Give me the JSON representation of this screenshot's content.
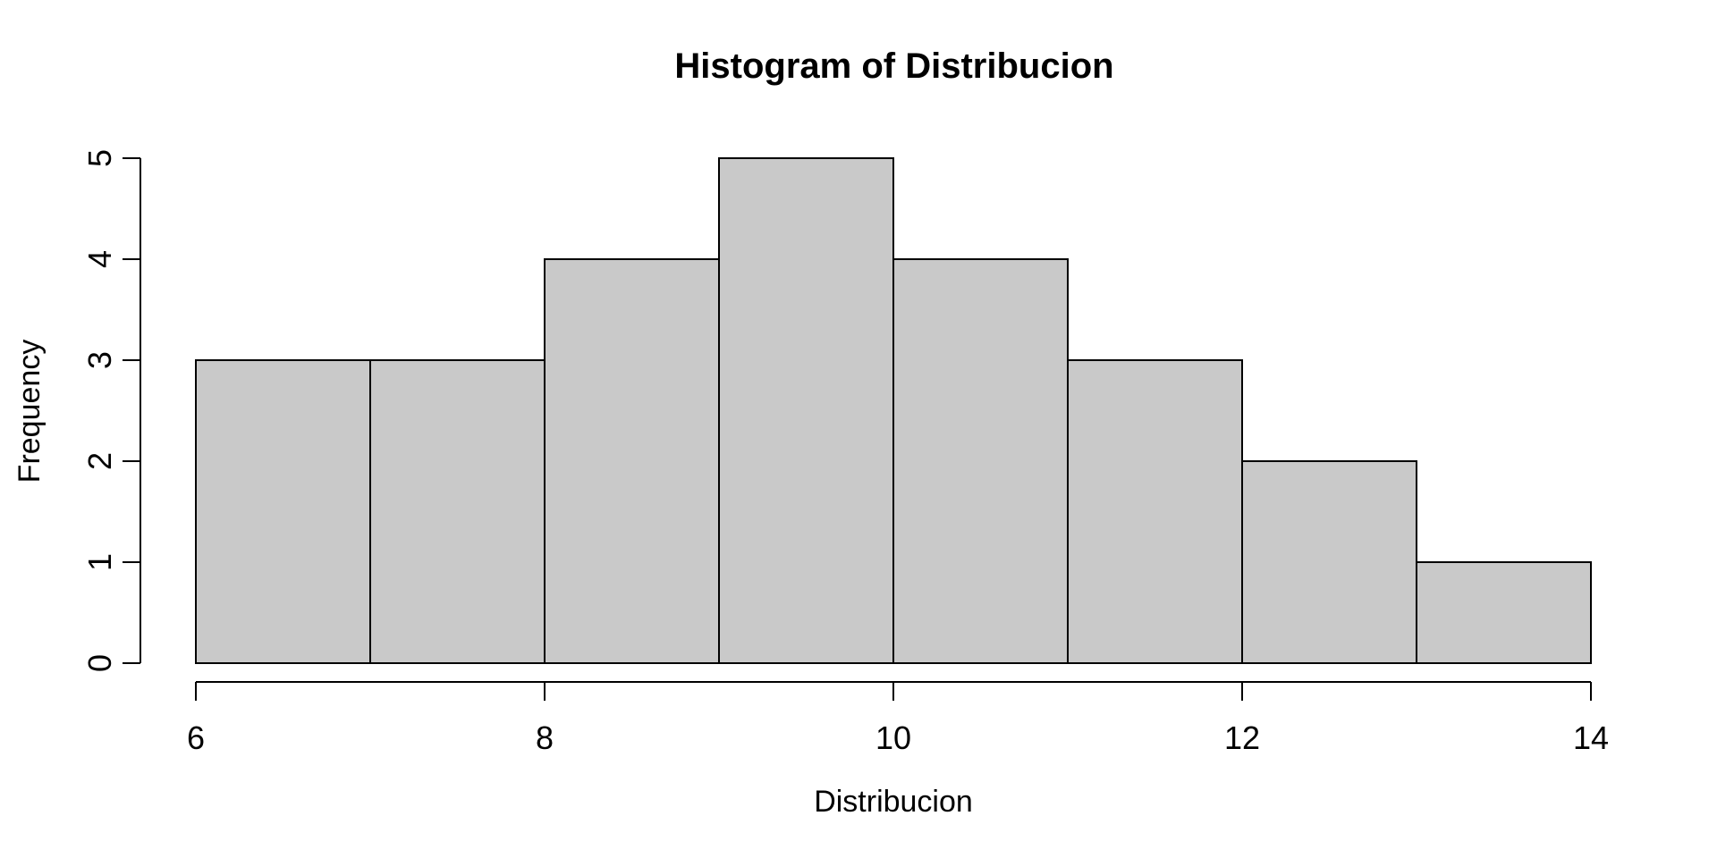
{
  "page": {
    "background": "#FFFFFF"
  },
  "chart_data": {
    "type": "bar",
    "subtype": "histogram",
    "title": "Histogram of Distribucion",
    "xlabel": "Distribucion",
    "ylabel": "Frequency",
    "bin_edges": [
      6,
      7,
      8,
      9,
      10,
      11,
      12,
      13,
      14
    ],
    "counts": [
      3,
      3,
      4,
      5,
      4,
      3,
      2,
      1
    ],
    "x_ticks": [
      6,
      8,
      10,
      12,
      14
    ],
    "x_tick_labels": [
      "6",
      "8",
      "10",
      "12",
      "14"
    ],
    "y_ticks": [
      0,
      1,
      2,
      3,
      4,
      5
    ],
    "y_tick_labels": [
      "0",
      "1",
      "2",
      "3",
      "4",
      "5"
    ],
    "xlim": [
      6,
      14
    ],
    "ylim": [
      0,
      5
    ],
    "grid": false,
    "legend": null,
    "colors": {
      "bar_fill": "#C9C9C9",
      "bar_border": "#000000",
      "axis": "#000000",
      "text": "#000000",
      "background": "#FFFFFF"
    }
  }
}
